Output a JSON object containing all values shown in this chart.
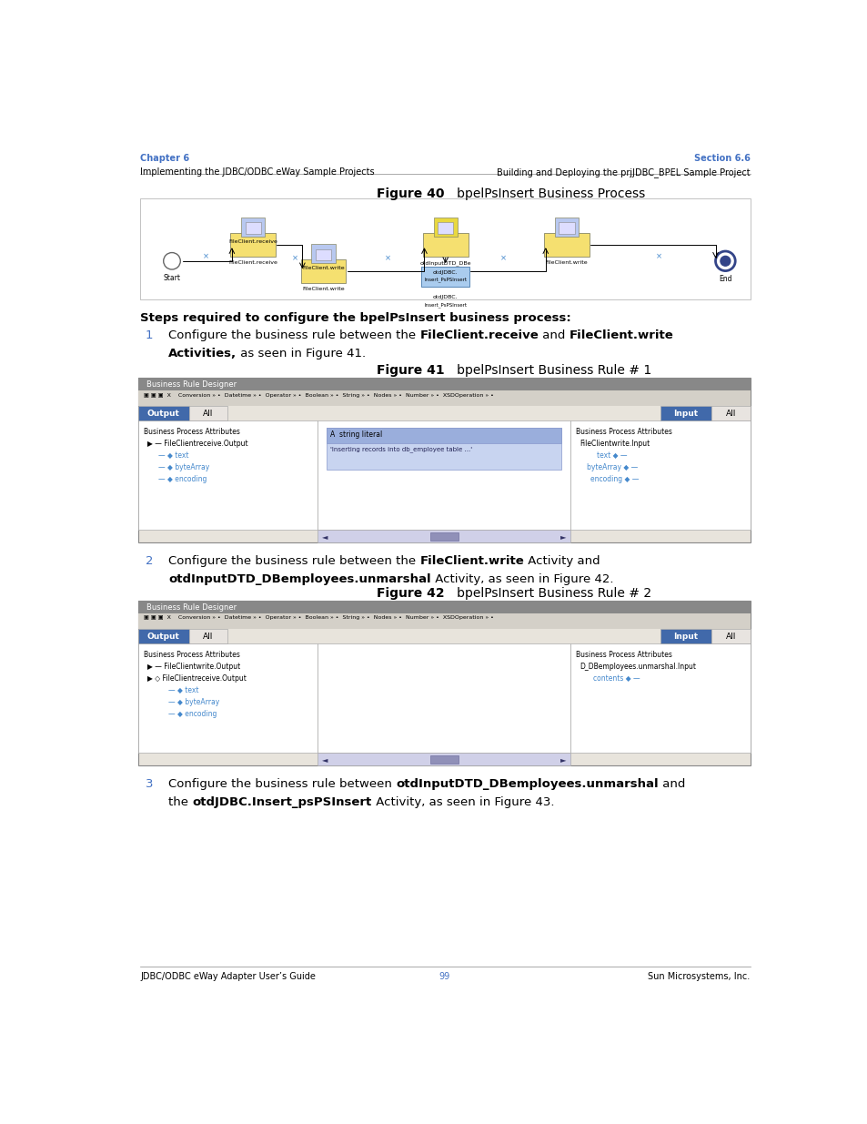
{
  "page_width": 9.54,
  "page_height": 12.35,
  "bg_color": "#ffffff",
  "header_blue": "#4472C4",
  "header_left_bold": "Chapter 6",
  "header_left_normal": "Implementing the JDBC/ODBC eWay Sample Projects",
  "header_right_bold": "Section 6.6",
  "header_right_normal": "Building and Deploying the prjJDBC_BPEL Sample Project",
  "footer_left": "JDBC/ODBC eWay Adapter User’s Guide",
  "footer_center": "99",
  "footer_right": "Sun Microsystems, Inc.",
  "figure40_title_bold": "Figure 40",
  "figure40_title_rest": "   bpelPsInsert Business Process",
  "figure41_title_bold": "Figure 41",
  "figure41_title_rest": "   bpelPsInsert Business Rule # 1",
  "figure42_title_bold": "Figure 42",
  "figure42_title_rest": "   bpelPsInsert Business Rule # 2",
  "steps_header": "Steps required to configure the bpelPsInsert business process:",
  "highlight_blue": "#4169aa",
  "link_blue": "#4472C4",
  "btn_blue": "#4169aa",
  "toolbar_color": "#d4d0c8",
  "toolbar_dark": "#c0bdb5",
  "panel_bg": "#f0ede8",
  "brd_bg": "#e8e4dc"
}
